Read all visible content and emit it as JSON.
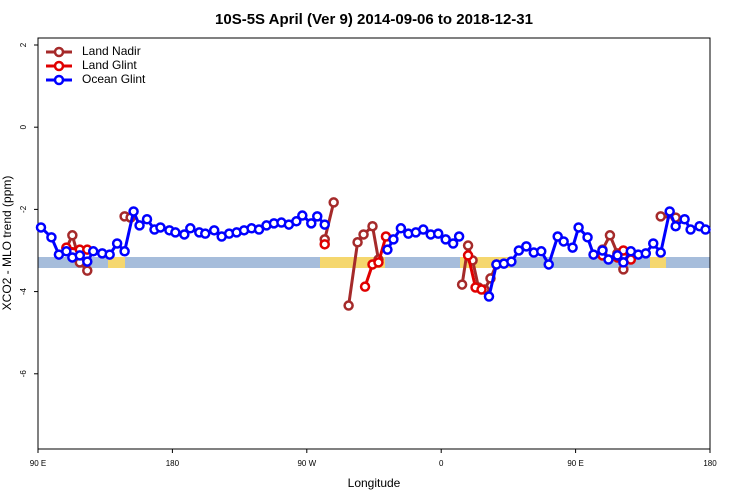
{
  "chart_data": {
    "type": "line",
    "title": "10S-5S April (Ver 9)   2014-09-06 to 2018-12-31",
    "x_label": "Longitude",
    "y_label": "XCO2 - MLO trend (ppm)",
    "xlim": [
      90,
      540
    ],
    "ylim": [
      -7.83,
      2.17
    ],
    "xticks": [
      {
        "value": 90,
        "label": "90 E"
      },
      180,
      {
        "value": 270,
        "label": "90 W"
      },
      {
        "value": 360,
        "label": "0"
      },
      {
        "value": 450,
        "label": "90 E"
      },
      {
        "value": 540,
        "label": "180"
      }
    ],
    "yticks": [
      2,
      0,
      -2,
      -4,
      -6
    ],
    "legend": "top-left",
    "series": [
      {
        "name": "Land Nadir",
        "color": "#a52a2a",
        "x": [
          109,
          113,
          118,
          123,
          null,
          148,
          152,
          null,
          282,
          288,
          null,
          298,
          304,
          308,
          314,
          318,
          null,
          374,
          378,
          381,
          385,
          389,
          393,
          397,
          null,
          468,
          473,
          478,
          482,
          487,
          null,
          507,
          517
        ],
        "values": [
          -2.95,
          -2.63,
          -3.29,
          -3.49,
          null,
          -2.17,
          -2.2,
          null,
          -2.73,
          -1.83,
          null,
          -4.34,
          -2.8,
          -2.61,
          -2.41,
          -3.22,
          null,
          -3.83,
          -2.88,
          -3.24,
          -3.9,
          -3.95,
          -3.68,
          -3.34,
          null,
          -2.98,
          -2.63,
          -3.07,
          -3.46,
          -3.1,
          null,
          -2.17,
          -2.2
        ]
      },
      {
        "name": "Land Glint",
        "color": "#e00000",
        "x": [
          109,
          118,
          123,
          null,
          282,
          null,
          309,
          314,
          318,
          323,
          null,
          378,
          383,
          387,
          null,
          468,
          478,
          482,
          487
        ],
        "values": [
          -2.93,
          -2.98,
          -2.98,
          null,
          -2.85,
          null,
          -3.88,
          -3.34,
          -3.29,
          -2.66,
          null,
          -3.12,
          -3.9,
          -3.95,
          null,
          -3.12,
          -3.17,
          -3.0,
          -3.22
        ]
      },
      {
        "name": "Ocean Glint",
        "color": "#0000ff",
        "x": [
          92,
          99,
          104,
          109,
          113,
          118,
          123,
          127,
          133,
          138,
          143,
          148,
          154,
          158,
          163,
          168,
          172,
          178,
          182,
          188,
          192,
          198,
          202,
          208,
          213,
          218,
          223,
          228,
          233,
          238,
          243,
          248,
          253,
          258,
          263,
          267,
          273,
          277,
          282,
          null,
          324,
          328,
          333,
          338,
          343,
          348,
          353,
          358,
          363,
          368,
          372,
          null,
          392,
          397,
          402,
          407,
          412,
          417,
          422,
          427,
          432,
          438,
          442,
          448,
          452,
          458,
          462,
          468,
          472,
          478,
          482,
          487,
          492,
          497,
          502,
          507,
          513,
          517,
          523,
          527,
          533,
          537
        ],
        "values": [
          -2.44,
          -2.68,
          -3.1,
          -3.02,
          -3.17,
          -3.12,
          -3.27,
          -3.02,
          -3.07,
          -3.1,
          -2.83,
          -3.02,
          -2.05,
          -2.39,
          -2.24,
          -2.49,
          -2.44,
          -2.51,
          -2.56,
          -2.61,
          -2.46,
          -2.56,
          -2.59,
          -2.51,
          -2.66,
          -2.59,
          -2.56,
          -2.51,
          -2.46,
          -2.49,
          -2.39,
          -2.34,
          -2.32,
          -2.37,
          -2.29,
          -2.15,
          -2.34,
          -2.17,
          -2.37,
          null,
          -2.98,
          -2.73,
          -2.46,
          -2.59,
          -2.56,
          -2.49,
          -2.61,
          -2.59,
          -2.73,
          -2.83,
          -2.66,
          null,
          -4.12,
          -3.34,
          -3.32,
          -3.27,
          -3.0,
          -2.9,
          -3.05,
          -3.02,
          -3.34,
          -2.66,
          -2.78,
          -2.93,
          -2.44,
          -2.68,
          -3.1,
          -3.0,
          -3.22,
          -3.12,
          -3.29,
          -3.02,
          -3.1,
          -3.07,
          -2.83,
          -3.05,
          -2.05,
          -2.41,
          -2.24,
          -2.49,
          -2.41,
          -2.49
        ]
      }
    ]
  }
}
